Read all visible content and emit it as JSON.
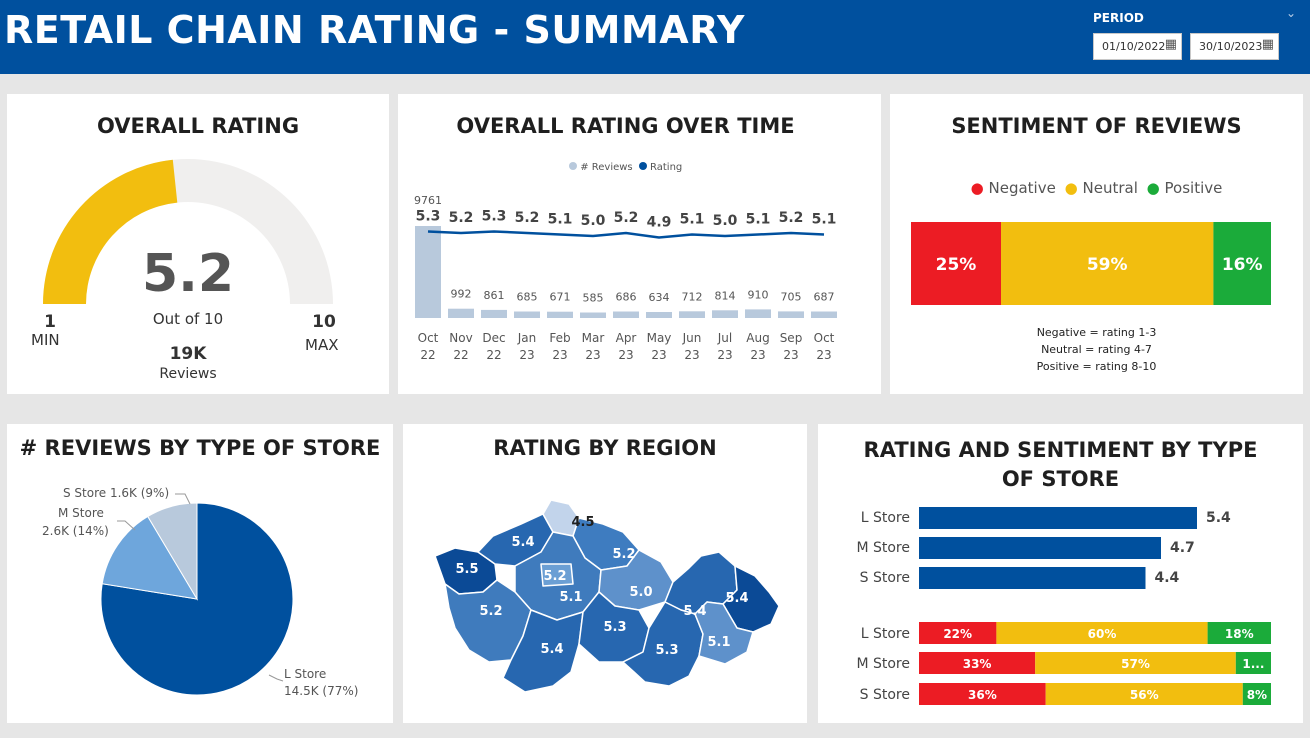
{
  "header": {
    "title": "RETAIL CHAIN RATING - SUMMARY",
    "period_label": "PERIOD",
    "date_from": "01/10/2022",
    "date_to": "30/10/2023",
    "calendar_icon": "calendar-icon",
    "chevron_icon": "chevron-down-icon"
  },
  "colors": {
    "header": "#00509e",
    "primary": "#00509e",
    "gauge_fill": "#f2be0f",
    "gauge_track": "#f0efee",
    "bar_reviews": "#b8c9dc",
    "negative": "#ec1c24",
    "neutral": "#f2be0f",
    "positive": "#1bab3a"
  },
  "overall_rating": {
    "title": "OVERALL RATING",
    "value": "5.2",
    "out_of": "Out of 10",
    "min_value": "1",
    "min_label": "MIN",
    "max_value": "10",
    "max_label": "MAX",
    "reviews_count": "19K",
    "reviews_label": "Reviews",
    "gauge_value": 5.2,
    "gauge_min": 1,
    "gauge_max": 10
  },
  "rating_over_time": {
    "title": "OVERALL RATING OVER TIME",
    "legend": [
      "# Reviews",
      "Rating"
    ],
    "chart_data": {
      "type": "bar",
      "x": [
        "Oct 22",
        "Nov 22",
        "Dec 22",
        "Jan 23",
        "Feb 23",
        "Mar 23",
        "Apr 23",
        "May 23",
        "Jun 23",
        "Jul 23",
        "Aug 23",
        "Sep 23",
        "Oct 23"
      ],
      "x_top": [
        "Oct",
        "Nov",
        "Dec",
        "Jan",
        "Feb",
        "Mar",
        "Apr",
        "May",
        "Jun",
        "Jul",
        "Aug",
        "Sep",
        "Oct"
      ],
      "x_bottom": [
        "22",
        "22",
        "22",
        "23",
        "23",
        "23",
        "23",
        "23",
        "23",
        "23",
        "23",
        "23",
        "23"
      ],
      "series": [
        {
          "name": "# Reviews",
          "type": "bar",
          "values": [
            9761,
            992,
            861,
            685,
            671,
            585,
            686,
            634,
            712,
            814,
            910,
            705,
            687
          ]
        },
        {
          "name": "Rating",
          "type": "line",
          "values": [
            5.3,
            5.2,
            5.3,
            5.2,
            5.1,
            5.0,
            5.2,
            4.9,
            5.1,
            5.0,
            5.1,
            5.2,
            5.1
          ]
        }
      ],
      "rating_labels": [
        "5.3",
        "5.2",
        "5.3",
        "5.2",
        "5.1",
        "5.0",
        "5.2",
        "4.9",
        "5.1",
        "5.0",
        "5.1",
        "5.2",
        "5.1"
      ],
      "review_labels": [
        "9761",
        "992",
        "861",
        "685",
        "671",
        "585",
        "686",
        "634",
        "712",
        "814",
        "910",
        "705",
        "687"
      ]
    }
  },
  "sentiment": {
    "title": "SENTIMENT OF REVIEWS",
    "legend": [
      "Negative",
      "Neutral",
      "Positive"
    ],
    "chart_data": {
      "type": "bar",
      "stacked": true,
      "categories": [
        "Negative",
        "Neutral",
        "Positive"
      ],
      "values": [
        25,
        59,
        16
      ],
      "labels": [
        "25%",
        "59%",
        "16%"
      ]
    },
    "notes": [
      "Negative = rating 1-3",
      "Neutral = rating 4-7",
      "Positive = rating 8-10"
    ]
  },
  "reviews_by_store": {
    "title": "# REVIEWS BY TYPE OF STORE",
    "chart_data": {
      "type": "pie",
      "categories": [
        "L Store",
        "M Store",
        "S Store"
      ],
      "values": [
        14.5,
        2.6,
        1.6
      ],
      "percents": [
        77,
        14,
        9
      ]
    },
    "labels": {
      "l_name": "L Store",
      "l_value": "14.5K (77%)",
      "m_name": "M Store",
      "m_value": "2.6K (14%)",
      "s_full": "S Store 1.6K (9%)"
    }
  },
  "rating_by_region": {
    "title": "RATING BY REGION",
    "regions": [
      "5.5",
      "5.4",
      "4.5",
      "5.2",
      "5.2",
      "5.1",
      "5.0",
      "5.2",
      "5.4",
      "5.4",
      "5.3",
      "5.4",
      "5.3",
      "5.1"
    ]
  },
  "rating_sentiment_by_store": {
    "title": "RATING AND SENTIMENT BY TYPE OF STORE",
    "title_line1": "RATING AND SENTIMENT BY TYPE",
    "title_line2": "OF STORE",
    "chart_data": [
      {
        "type": "bar",
        "orientation": "horizontal",
        "categories": [
          "L Store",
          "M Store",
          "S Store"
        ],
        "values": [
          5.4,
          4.7,
          4.4
        ],
        "labels": [
          "5.4",
          "4.7",
          "4.4"
        ]
      },
      {
        "type": "bar",
        "orientation": "horizontal",
        "stacked": true,
        "categories": [
          "L Store",
          "M Store",
          "S Store"
        ],
        "series": [
          {
            "name": "Negative",
            "values": [
              22,
              33,
              36
            ],
            "labels": [
              "22%",
              "33%",
              "36%"
            ]
          },
          {
            "name": "Neutral",
            "values": [
              60,
              57,
              56
            ],
            "labels": [
              "60%",
              "57%",
              "56%"
            ]
          },
          {
            "name": "Positive",
            "values": [
              18,
              10,
              8
            ],
            "labels": [
              "18%",
              "1...",
              "8%"
            ]
          }
        ]
      }
    ]
  }
}
